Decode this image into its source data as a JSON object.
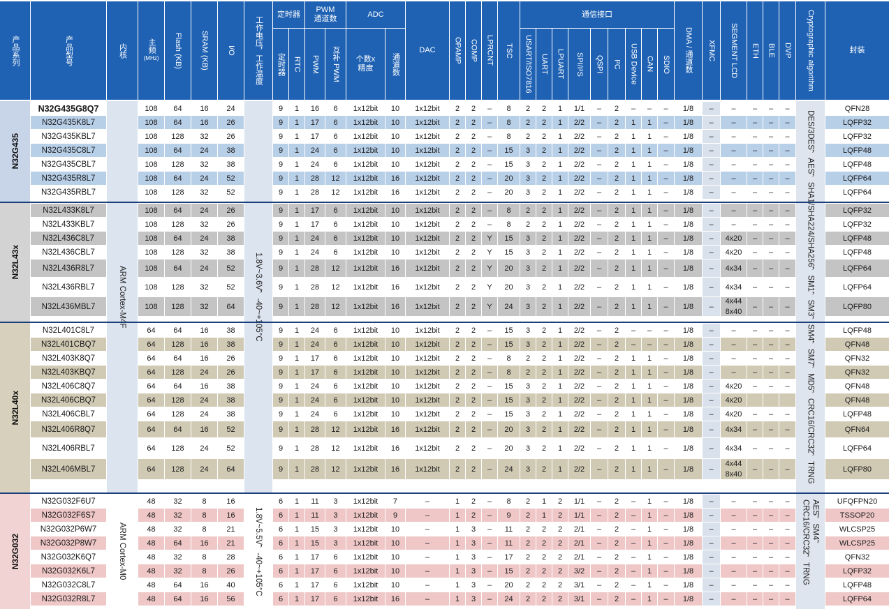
{
  "header": {
    "family": "产品系列",
    "model": "产品型号",
    "core": "内核",
    "freq": "主频",
    "freq_unit": "(MHz)",
    "flash": "Flash (KB)",
    "sram": "SRAM (KB)",
    "io": "I/O",
    "voltage": "工作电压，工作温度",
    "timer_group": "定时器",
    "timer": "定时器",
    "rtc": "RTC",
    "pwm_group": "PWM 通道数",
    "pwm": "PWM",
    "pwm_comp": "互补 PWM",
    "adc_group": "ADC",
    "adc_count": "个数x精度",
    "adc_channels": "通道数",
    "dac": "DAC",
    "opamp": "OPAMP",
    "comp": "COMP",
    "lprcnt": "LPRCNT",
    "tsc": "TSC",
    "comm_group": "通信接口",
    "usart": "USART/ISO7816",
    "uart": "UART",
    "lpuart": "LPUART",
    "spi": "SPI/I²S",
    "qspi": "QSPI",
    "i2c": "I²C",
    "usb": "USB Device",
    "can": "CAN",
    "sdio": "SDIO",
    "dma": "DMA / 通道数",
    "xfmc": "XFMC",
    "lcd": "SEGMENT LCD",
    "eth": "ETH",
    "ble": "BLE",
    "dvp": "DVP",
    "crypto": "Cryptographic algorithm",
    "package": "封装"
  },
  "groups": [
    {
      "family": "N32G435",
      "core": "ARM Cortex-M4F",
      "voltage": "1.8V~3.6V，-40~+105°C",
      "crypto": "DES/3DES，AES，SHA1/SHA224/SHA256，SM1，SM3，SM4，SM7，MD5，CRC16/CRC32，TRNG",
      "shade": "#b8cfe8",
      "fam_bg": "#c8d5e8"
    },
    {
      "family": "N32L43x",
      "shade": "#c4c4c4",
      "fam_bg": "#d3d3d3"
    },
    {
      "family": "N32L40x",
      "shade": "#d0c9b3",
      "fam_bg": "#d7d0bd"
    },
    {
      "family": "N32G032",
      "core": "ARM Cortex-M0",
      "voltage": "1.8V~5.5V，-40~+105°C",
      "crypto": "AES，SM4，CRC16/CRC32，TRNG",
      "shade": "#efc7c7",
      "fam_bg": "#f2d3d3"
    }
  ],
  "columns": [
    "model",
    "freq",
    "flash",
    "sram",
    "io",
    "timer",
    "rtc",
    "pwm",
    "pwm_comp",
    "adc",
    "adc_ch",
    "dac",
    "opamp",
    "comp",
    "lprcnt",
    "tsc",
    "usart",
    "uart",
    "lpuart",
    "spi",
    "qspi",
    "i2c",
    "usb",
    "can",
    "sdio",
    "dma",
    "xfmc",
    "lcd",
    "eth",
    "ble",
    "dvp",
    "package"
  ],
  "rows": [
    {
      "g": 0,
      "s": 0,
      "c": [
        "N32G435G8Q7",
        "108",
        "64",
        "16",
        "24",
        "9",
        "1",
        "16",
        "6",
        "1x12bit",
        "10",
        "1x12bit",
        "2",
        "2",
        "–",
        "8",
        "2",
        "2",
        "1",
        "1/1",
        "–",
        "2",
        "–",
        "–",
        "–",
        "1/8",
        "–",
        "–",
        "–",
        "–",
        "–",
        "QFN28"
      ]
    },
    {
      "g": 0,
      "s": 1,
      "c": [
        "N32G435K8L7",
        "108",
        "64",
        "16",
        "26",
        "9",
        "1",
        "17",
        "6",
        "1x12bit",
        "10",
        "1x12bit",
        "2",
        "2",
        "–",
        "8",
        "2",
        "2",
        "1",
        "2/2",
        "–",
        "2",
        "1",
        "1",
        "–",
        "1/8",
        "–",
        "–",
        "–",
        "–",
        "–",
        "LQFP32"
      ]
    },
    {
      "g": 0,
      "s": 0,
      "c": [
        "N32G435KBL7",
        "108",
        "128",
        "32",
        "26",
        "9",
        "1",
        "17",
        "6",
        "1x12bit",
        "10",
        "1x12bit",
        "2",
        "2",
        "–",
        "8",
        "2",
        "2",
        "1",
        "2/2",
        "–",
        "2",
        "1",
        "1",
        "–",
        "1/8",
        "–",
        "–",
        "–",
        "–",
        "–",
        "LQFP32"
      ]
    },
    {
      "g": 0,
      "s": 1,
      "c": [
        "N32G435C8L7",
        "108",
        "64",
        "24",
        "38",
        "9",
        "1",
        "24",
        "6",
        "1x12bit",
        "10",
        "1x12bit",
        "2",
        "2",
        "–",
        "15",
        "3",
        "2",
        "1",
        "2/2",
        "–",
        "2",
        "1",
        "1",
        "–",
        "1/8",
        "–",
        "–",
        "–",
        "–",
        "–",
        "LQFP48"
      ]
    },
    {
      "g": 0,
      "s": 0,
      "c": [
        "N32G435CBL7",
        "108",
        "128",
        "32",
        "38",
        "9",
        "1",
        "24",
        "6",
        "1x12bit",
        "10",
        "1x12bit",
        "2",
        "2",
        "–",
        "15",
        "3",
        "2",
        "1",
        "2/2",
        "–",
        "2",
        "1",
        "1",
        "–",
        "1/8",
        "–",
        "–",
        "–",
        "–",
        "–",
        "LQFP48"
      ]
    },
    {
      "g": 0,
      "s": 1,
      "c": [
        "N32G435R8L7",
        "108",
        "64",
        "24",
        "52",
        "9",
        "1",
        "28",
        "12",
        "1x12bit",
        "16",
        "1x12bit",
        "2",
        "2",
        "–",
        "20",
        "3",
        "2",
        "1",
        "2/2",
        "–",
        "2",
        "1",
        "1",
        "–",
        "1/8",
        "–",
        "–",
        "–",
        "–",
        "–",
        "LQFP64"
      ]
    },
    {
      "g": 0,
      "s": 0,
      "c": [
        "N32G435RBL7",
        "108",
        "128",
        "32",
        "52",
        "9",
        "1",
        "28",
        "12",
        "1x12bit",
        "16",
        "1x12bit",
        "2",
        "2",
        "–",
        "20",
        "3",
        "2",
        "1",
        "2/2",
        "–",
        "2",
        "1",
        "1",
        "–",
        "1/8",
        "–",
        "–",
        "–",
        "–",
        "–",
        "LQFP64"
      ]
    },
    {
      "g": 1,
      "s": 1,
      "c": [
        "N32L433K8L7",
        "108",
        "64",
        "24",
        "26",
        "9",
        "1",
        "17",
        "6",
        "1x12bit",
        "10",
        "1x12bit",
        "2",
        "2",
        "–",
        "8",
        "2",
        "2",
        "1",
        "2/2",
        "–",
        "2",
        "1",
        "1",
        "–",
        "1/8",
        "–",
        "–",
        "–",
        "–",
        "–",
        "LQFP32"
      ]
    },
    {
      "g": 1,
      "s": 0,
      "c": [
        "N32L433KBL7",
        "108",
        "128",
        "32",
        "26",
        "9",
        "1",
        "17",
        "6",
        "1x12bit",
        "10",
        "1x12bit",
        "2",
        "2",
        "–",
        "8",
        "2",
        "2",
        "1",
        "2/2",
        "–",
        "2",
        "1",
        "1",
        "–",
        "1/8",
        "–",
        "–",
        "–",
        "–",
        "–",
        "LQFP32"
      ]
    },
    {
      "g": 1,
      "s": 1,
      "c": [
        "N32L436C8L7",
        "108",
        "64",
        "24",
        "38",
        "9",
        "1",
        "24",
        "6",
        "1x12bit",
        "10",
        "1x12bit",
        "2",
        "2",
        "Y",
        "15",
        "3",
        "2",
        "1",
        "2/2",
        "–",
        "2",
        "1",
        "1",
        "–",
        "1/8",
        "–",
        "4x20",
        "–",
        "–",
        "–",
        "LQFP48"
      ]
    },
    {
      "g": 1,
      "s": 0,
      "c": [
        "N32L436CBL7",
        "108",
        "128",
        "32",
        "38",
        "9",
        "1",
        "24",
        "6",
        "1x12bit",
        "10",
        "1x12bit",
        "2",
        "2",
        "Y",
        "15",
        "3",
        "2",
        "1",
        "2/2",
        "–",
        "2",
        "1",
        "1",
        "–",
        "1/8",
        "–",
        "4x20",
        "–",
        "–",
        "–",
        "LQFP48"
      ]
    },
    {
      "g": 1,
      "s": 1,
      "c": [
        "N32L436R8L7",
        "108",
        "64",
        "24",
        "52",
        "9",
        "1",
        "28",
        "12",
        "1x12bit",
        "16",
        "1x12bit",
        "2",
        "2",
        "Y",
        "20",
        "3",
        "2",
        "1",
        "2/2",
        "–",
        "2",
        "1",
        "1",
        "–",
        "1/8",
        "–",
        "4x34",
        "–",
        "–",
        "–",
        "LQFP64"
      ]
    },
    {
      "g": 1,
      "s": 0,
      "c": [
        "N32L436RBL7",
        "108",
        "128",
        "32",
        "52",
        "9",
        "1",
        "28",
        "12",
        "1x12bit",
        "16",
        "1x12bit",
        "2",
        "2",
        "Y",
        "20",
        "3",
        "2",
        "1",
        "2/2",
        "–",
        "2",
        "1",
        "1",
        "–",
        "1/8",
        "–",
        "4x34",
        "–",
        "–",
        "–",
        "LQFP64"
      ]
    },
    {
      "g": 1,
      "s": 1,
      "c": [
        "N32L436MBL7",
        "108",
        "128",
        "32",
        "64",
        "9",
        "1",
        "28",
        "12",
        "1x12bit",
        "16",
        "1x12bit",
        "2",
        "2",
        "Y",
        "24",
        "3",
        "2",
        "1",
        "2/2",
        "–",
        "2",
        "1",
        "1",
        "–",
        "1/8",
        "–",
        "4x44 8x40",
        "–",
        "–",
        "–",
        "LQFP80"
      ]
    },
    {
      "g": 2,
      "s": 0,
      "c": [
        "N32L401C8L7",
        "64",
        "64",
        "16",
        "38",
        "9",
        "1",
        "24",
        "6",
        "1x12bit",
        "10",
        "1x12bit",
        "2",
        "2",
        "–",
        "15",
        "3",
        "2",
        "1",
        "2/2",
        "–",
        "2",
        "–",
        "–",
        "–",
        "1/8",
        "–",
        "–",
        "–",
        "–",
        "–",
        "LQFP48"
      ]
    },
    {
      "g": 2,
      "s": 1,
      "c": [
        "N32L401CBQ7",
        "64",
        "128",
        "16",
        "38",
        "9",
        "1",
        "24",
        "6",
        "1x12bit",
        "10",
        "1x12bit",
        "2",
        "2",
        "–",
        "15",
        "3",
        "2",
        "1",
        "2/2",
        "–",
        "2",
        "–",
        "–",
        "–",
        "1/8",
        "–",
        "–",
        "–",
        "–",
        "–",
        "QFN48"
      ]
    },
    {
      "g": 2,
      "s": 0,
      "c": [
        "N32L403K8Q7",
        "64",
        "64",
        "16",
        "26",
        "9",
        "1",
        "17",
        "6",
        "1x12bit",
        "10",
        "1x12bit",
        "2",
        "2",
        "–",
        "8",
        "2",
        "2",
        "1",
        "2/2",
        "–",
        "2",
        "1",
        "1",
        "–",
        "1/8",
        "–",
        "–",
        "–",
        "–",
        "–",
        "QFN32"
      ]
    },
    {
      "g": 2,
      "s": 1,
      "c": [
        "N32L403KBQ7",
        "64",
        "128",
        "24",
        "26",
        "9",
        "1",
        "17",
        "6",
        "1x12bit",
        "10",
        "1x12bit",
        "2",
        "2",
        "–",
        "8",
        "2",
        "2",
        "1",
        "2/2",
        "–",
        "2",
        "1",
        "1",
        "–",
        "1/8",
        "–",
        "–",
        "–",
        "–",
        "–",
        "QFN32"
      ]
    },
    {
      "g": 2,
      "s": 0,
      "c": [
        "N32L406C8Q7",
        "64",
        "64",
        "16",
        "38",
        "9",
        "1",
        "24",
        "6",
        "1x12bit",
        "10",
        "1x12bit",
        "2",
        "2",
        "–",
        "15",
        "3",
        "2",
        "1",
        "2/2",
        "–",
        "2",
        "1",
        "1",
        "–",
        "1/8",
        "–",
        "4x20",
        "–",
        "–",
        "–",
        "QFN48"
      ]
    },
    {
      "g": 2,
      "s": 1,
      "c": [
        "N32L406CBQ7",
        "64",
        "128",
        "24",
        "38",
        "9",
        "1",
        "24",
        "6",
        "1x12bit",
        "10",
        "1x12bit",
        "2",
        "2",
        "–",
        "15",
        "3",
        "2",
        "1",
        "2/2",
        "–",
        "2",
        "1",
        "1",
        "–",
        "1/8",
        "–",
        "4x20",
        "",
        "",
        "",
        "QFN48"
      ]
    },
    {
      "g": 2,
      "s": 0,
      "c": [
        "N32L406CBL7",
        "64",
        "128",
        "24",
        "38",
        "9",
        "1",
        "24",
        "6",
        "1x12bit",
        "10",
        "1x12bit",
        "2",
        "2",
        "–",
        "15",
        "3",
        "2",
        "1",
        "2/2",
        "–",
        "2",
        "1",
        "1",
        "–",
        "1/8",
        "–",
        "4x20",
        "–",
        "–",
        "–",
        "LQFP48"
      ]
    },
    {
      "g": 2,
      "s": 1,
      "c": [
        "N32L406R8Q7",
        "64",
        "64",
        "16",
        "52",
        "9",
        "1",
        "28",
        "12",
        "1x12bit",
        "16",
        "1x12bit",
        "2",
        "2",
        "–",
        "20",
        "3",
        "2",
        "1",
        "2/2",
        "–",
        "2",
        "1",
        "1",
        "–",
        "1/8",
        "–",
        "4x34",
        "–",
        "–",
        "–",
        "QFN64"
      ]
    },
    {
      "g": 2,
      "s": 0,
      "c": [
        "N32L406RBL7",
        "64",
        "128",
        "24",
        "52",
        "9",
        "1",
        "28",
        "12",
        "1x12bit",
        "16",
        "1x12bit",
        "2",
        "2",
        "–",
        "20",
        "3",
        "2",
        "1",
        "2/2",
        "–",
        "2",
        "1",
        "1",
        "–",
        "1/8",
        "–",
        "4x34",
        "–",
        "–",
        "–",
        "LQFP64"
      ]
    },
    {
      "g": 2,
      "s": 1,
      "c": [
        "N32L406MBL7",
        "64",
        "128",
        "24",
        "64",
        "9",
        "1",
        "28",
        "12",
        "1x12bit",
        "16",
        "1x12bit",
        "2",
        "2",
        "–",
        "24",
        "3",
        "2",
        "1",
        "2/2",
        "–",
        "2",
        "1",
        "1",
        "–",
        "1/8",
        "–",
        "4x44 8x40",
        "–",
        "–",
        "–",
        "LQFP80"
      ]
    },
    {
      "g": 3,
      "s": 0,
      "c": [
        "N32G032F6U7",
        "48",
        "32",
        "8",
        "16",
        "6",
        "1",
        "11",
        "3",
        "1x12bit",
        "7",
        "–",
        "1",
        "2",
        "–",
        "8",
        "2",
        "1",
        "2",
        "1/1",
        "–",
        "2",
        "–",
        "1",
        "–",
        "1/8",
        "–",
        "–",
        "–",
        "–",
        "–",
        "UFQFPN20"
      ]
    },
    {
      "g": 3,
      "s": 1,
      "c": [
        "N32G032F6S7",
        "48",
        "32",
        "8",
        "16",
        "6",
        "1",
        "11",
        "3",
        "1x12bit",
        "9",
        "–",
        "1",
        "2",
        "–",
        "9",
        "2",
        "1",
        "2",
        "1/1",
        "–",
        "2",
        "–",
        "1",
        "–",
        "1/8",
        "–",
        "–",
        "–",
        "–",
        "–",
        "TSSOP20"
      ]
    },
    {
      "g": 3,
      "s": 0,
      "c": [
        "N32G032P6W7",
        "48",
        "32",
        "8",
        "21",
        "6",
        "1",
        "15",
        "3",
        "1x12bit",
        "10",
        "–",
        "1",
        "3",
        "–",
        "11",
        "2",
        "2",
        "2",
        "2/1",
        "–",
        "2",
        "–",
        "1",
        "–",
        "1/8",
        "–",
        "–",
        "–",
        "–",
        "–",
        "WLCSP25"
      ]
    },
    {
      "g": 3,
      "s": 1,
      "c": [
        "N32G032P8W7",
        "48",
        "64",
        "16",
        "21",
        "6",
        "1",
        "15",
        "3",
        "1x12bit",
        "10",
        "–",
        "1",
        "3",
        "–",
        "11",
        "2",
        "2",
        "2",
        "2/1",
        "–",
        "2",
        "–",
        "1",
        "–",
        "1/8",
        "–",
        "–",
        "–",
        "–",
        "–",
        "WLCSP25"
      ]
    },
    {
      "g": 3,
      "s": 0,
      "c": [
        "N32G032K6Q7",
        "48",
        "32",
        "8",
        "28",
        "6",
        "1",
        "17",
        "6",
        "1x12bit",
        "10",
        "–",
        "1",
        "3",
        "–",
        "17",
        "2",
        "2",
        "2",
        "2/1",
        "–",
        "2",
        "–",
        "1",
        "–",
        "1/8",
        "–",
        "–",
        "–",
        "–",
        "–",
        "QFN32"
      ]
    },
    {
      "g": 3,
      "s": 1,
      "c": [
        "N32G032K6L7",
        "48",
        "32",
        "8",
        "26",
        "6",
        "1",
        "17",
        "6",
        "1x12bit",
        "10",
        "–",
        "1",
        "3",
        "–",
        "15",
        "2",
        "2",
        "2",
        "3/2",
        "–",
        "2",
        "–",
        "1",
        "–",
        "1/8",
        "–",
        "–",
        "–",
        "–",
        "–",
        "LQFP32"
      ]
    },
    {
      "g": 3,
      "s": 0,
      "c": [
        "N32G032C8L7",
        "48",
        "64",
        "16",
        "40",
        "6",
        "1",
        "17",
        "6",
        "1x12bit",
        "10",
        "–",
        "1",
        "3",
        "–",
        "20",
        "2",
        "2",
        "2",
        "3/1",
        "–",
        "2",
        "–",
        "1",
        "–",
        "1/8",
        "–",
        "–",
        "–",
        "–",
        "–",
        "LQFP48"
      ]
    },
    {
      "g": 3,
      "s": 1,
      "c": [
        "N32G032R8L7",
        "48",
        "64",
        "16",
        "56",
        "6",
        "1",
        "17",
        "6",
        "1x12bit",
        "16",
        "–",
        "1",
        "3",
        "–",
        "24",
        "2",
        "2",
        "2",
        "3/1",
        "–",
        "2",
        "–",
        "1",
        "–",
        "1/8",
        "–",
        "–",
        "–",
        "–",
        "–",
        "LQFP64"
      ]
    }
  ],
  "colors": {
    "header": "#1f62b4",
    "divider": "#1b3f7a",
    "core_bg": "#dce4ef",
    "xfmc_bg": "#d9e1ec",
    "crypto_bg": "#dfe5ee"
  }
}
